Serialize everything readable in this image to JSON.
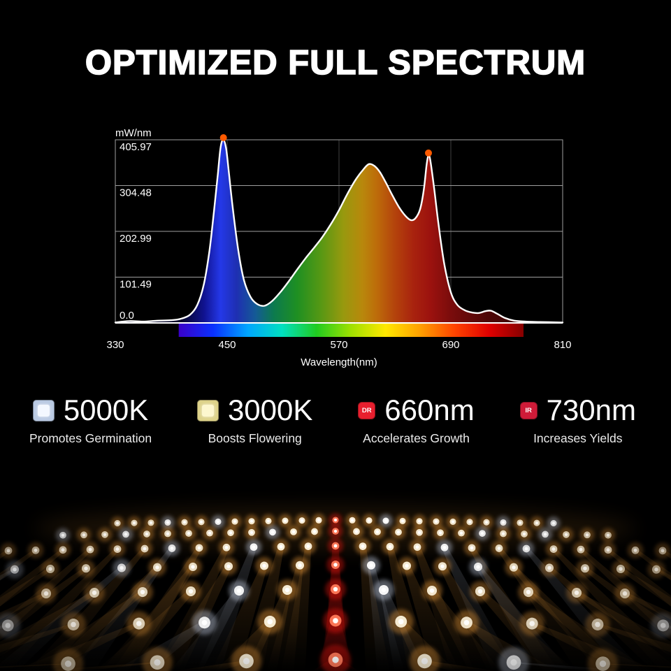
{
  "title": "OPTIMIZED FULL SPECTRUM",
  "chart_data": {
    "type": "area",
    "title": "",
    "xlabel": "Wavelength(nm)",
    "ylabel": "mW/nm",
    "xlim": [
      330,
      810
    ],
    "ylim": [
      0,
      405.97
    ],
    "x_ticks": [
      330,
      450,
      570,
      690,
      810
    ],
    "y_ticks": [
      0,
      101.49,
      202.99,
      304.48,
      405.97
    ],
    "y_tick_labels": [
      "0.0",
      "101.49",
      "202.99",
      "304.48",
      "405.97"
    ],
    "grid": true,
    "legend_position": "none",
    "series": [
      {
        "name": "spectral power distribution",
        "x": [
          330,
          345,
          360,
          375,
          390,
          400,
          410,
          418,
          425,
          431,
          436,
          440,
          443,
          446,
          449,
          452,
          456,
          462,
          468,
          475,
          482,
          490,
          498,
          507,
          516,
          525,
          534,
          543,
          552,
          561,
          570,
          579,
          588,
          596,
          602,
          608,
          614,
          620,
          627,
          634,
          641,
          647,
          652,
          657,
          661,
          664,
          666,
          668,
          672,
          677,
          683,
          690,
          697,
          705,
          713,
          720,
          727,
          733,
          740,
          748,
          758,
          770,
          785,
          810
        ],
        "y": [
          1,
          4,
          3,
          5,
          6,
          9,
          18,
          40,
          86,
          160,
          250,
          330,
          390,
          405.97,
          385,
          330,
          255,
          160,
          95,
          58,
          42,
          38,
          48,
          68,
          92,
          118,
          143,
          166,
          190,
          218,
          250,
          286,
          318,
          340,
          352,
          348,
          334,
          312,
          284,
          258,
          238,
          228,
          232,
          252,
          295,
          350,
          372,
          360,
          300,
          215,
          130,
          68,
          40,
          28,
          23,
          22,
          26,
          27,
          20,
          11,
          5,
          3,
          2,
          1
        ]
      }
    ],
    "peak_markers": [
      {
        "x": 446,
        "y": 405.97
      },
      {
        "x": 666,
        "y": 372
      }
    ],
    "marker_color": "#ff5a00",
    "curve_color": "#ffffff",
    "spectrum_gradient": [
      {
        "at": 400,
        "color": "#050528"
      },
      {
        "at": 425,
        "color": "#10128f"
      },
      {
        "at": 443,
        "color": "#2438e8"
      },
      {
        "at": 460,
        "color": "#1e2fb2"
      },
      {
        "at": 480,
        "color": "#145a96"
      },
      {
        "at": 500,
        "color": "#0c7a4e"
      },
      {
        "at": 525,
        "color": "#1e8f22"
      },
      {
        "at": 550,
        "color": "#559814"
      },
      {
        "at": 575,
        "color": "#98990e"
      },
      {
        "at": 595,
        "color": "#b8880c"
      },
      {
        "at": 610,
        "color": "#bd6d0a"
      },
      {
        "at": 630,
        "color": "#b4430c"
      },
      {
        "at": 650,
        "color": "#a8220e"
      },
      {
        "at": 668,
        "color": "#9c120e"
      },
      {
        "at": 690,
        "color": "#7a0c0c"
      },
      {
        "at": 730,
        "color": "#4d0707"
      },
      {
        "at": 810,
        "color": "#2d0505"
      }
    ],
    "color_bar": {
      "from_nm": 398,
      "to_nm": 768,
      "stops": [
        "#3a00c8",
        "#0a30ff",
        "#00a6ff",
        "#00e0c0",
        "#20cc20",
        "#a0e000",
        "#ffe800",
        "#ffa000",
        "#ff4400",
        "#e00000",
        "#860000"
      ]
    }
  },
  "legend": {
    "items": [
      {
        "value": "5000K",
        "caption": "Promotes Germination",
        "icon": "led-chip-5000k-icon",
        "chip_outer": "#b9c9e2",
        "chip_inner": "#f4f8ff",
        "chip_label": ""
      },
      {
        "value": "3000K",
        "caption": "Boosts Flowering",
        "icon": "led-chip-3000k-icon",
        "chip_outer": "#ddd289",
        "chip_inner": "#fdf7cf",
        "chip_label": ""
      },
      {
        "value": "660nm",
        "caption": "Accelerates Growth",
        "icon": "led-chip-660nm-icon",
        "chip_outer": "#e81f2e",
        "chip_inner": "#e81f2e",
        "chip_label": "DR"
      },
      {
        "value": "730nm",
        "caption": "Increases Yields",
        "icon": "led-chip-730nm-icon",
        "chip_outer": "#cf1b38",
        "chip_inner": "#cf1b38",
        "chip_label": "IR"
      }
    ]
  },
  "led_panel": {
    "warm_color": "#ffa73c",
    "cool_color": "#dfe9ff",
    "red_color": "#ff1410"
  }
}
